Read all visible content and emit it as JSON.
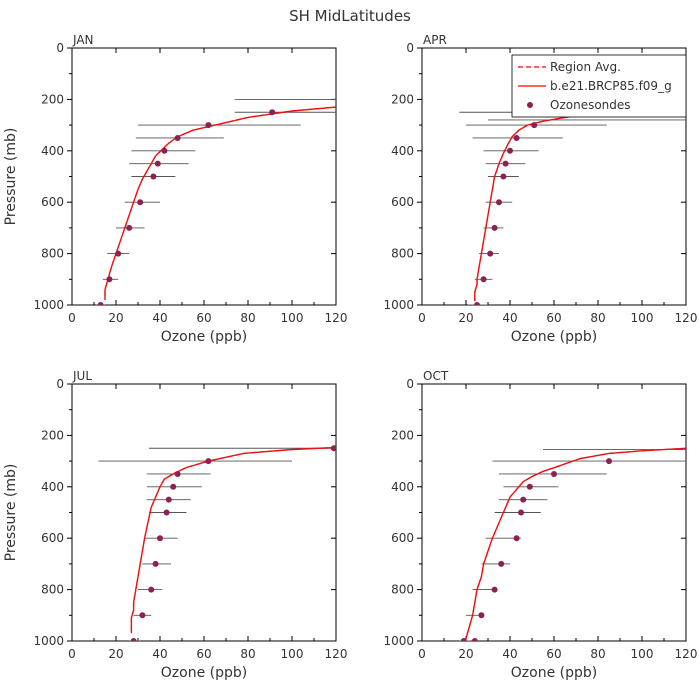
{
  "figure": {
    "title": "SH MidLatitudes",
    "legend": {
      "placement": "top-right",
      "entries": [
        {
          "label": "Region Avg.",
          "style": "dashed",
          "color": "#ff0000"
        },
        {
          "label": "b.e21.BRCP85.f09_g",
          "style": "solid",
          "color": "#ff0000"
        },
        {
          "label": "Ozonesondes",
          "style": "dot",
          "color": "#8b2252"
        }
      ]
    }
  },
  "chart_data": [
    {
      "type": "line",
      "panel": "JAN",
      "title": "JAN",
      "xlabel": "Ozone (ppb)",
      "ylabel": "Pressure (mb)",
      "xlim": [
        0,
        120
      ],
      "ylim": [
        0,
        1000
      ],
      "y_inverted": true,
      "xticks": [
        0,
        20,
        40,
        60,
        80,
        100,
        120
      ],
      "yticks": [
        0,
        200,
        400,
        600,
        800,
        1000
      ],
      "model": {
        "x": [
          120,
          100,
          80,
          65,
          55,
          48,
          44,
          41,
          38,
          36,
          34,
          32,
          30,
          28,
          26,
          24,
          22,
          20,
          18,
          17,
          16,
          15,
          15
        ],
        "y": [
          230,
          245,
          270,
          300,
          320,
          345,
          370,
          395,
          420,
          450,
          480,
          510,
          550,
          600,
          650,
          700,
          750,
          800,
          850,
          880,
          910,
          940,
          980
        ]
      },
      "region_avg": {
        "x": [
          120,
          100,
          80,
          65,
          55,
          48,
          44,
          41,
          38,
          36,
          34,
          32,
          30,
          28,
          26,
          24,
          22,
          20,
          18,
          17,
          16,
          15,
          15
        ],
        "y": [
          230,
          245,
          270,
          300,
          320,
          345,
          370,
          395,
          420,
          450,
          480,
          510,
          550,
          600,
          650,
          700,
          750,
          800,
          850,
          880,
          910,
          940,
          980
        ]
      },
      "sondes": {
        "x": [
          91,
          62,
          48,
          42,
          39,
          37,
          31,
          26,
          21,
          17,
          13
        ],
        "y": [
          250,
          300,
          350,
          400,
          450,
          500,
          600,
          700,
          800,
          900,
          1000
        ],
        "err": [
          [
            74,
            120
          ],
          [
            30,
            104
          ],
          [
            29,
            69
          ],
          [
            27,
            56
          ],
          [
            26,
            53
          ],
          [
            27,
            47
          ],
          [
            24,
            40
          ],
          [
            20,
            33
          ],
          [
            16,
            26
          ],
          [
            14,
            21
          ],
          [
            11,
            15
          ]
        ],
        "extra_bars": [
          {
            "y": 200,
            "err": [
              74,
              120
            ]
          }
        ]
      }
    },
    {
      "type": "line",
      "panel": "APR",
      "title": "APR",
      "xlabel": "Ozone (ppb)",
      "ylabel": "",
      "xlim": [
        0,
        120
      ],
      "ylim": [
        0,
        1000
      ],
      "y_inverted": true,
      "xticks": [
        0,
        20,
        40,
        60,
        80,
        100,
        120
      ],
      "yticks": [
        0,
        200,
        400,
        600,
        800,
        1000
      ],
      "model": {
        "x": [
          120,
          100,
          80,
          65,
          55,
          48,
          44,
          41,
          39,
          37,
          35,
          33,
          32,
          31,
          30,
          29,
          28,
          27,
          26,
          25,
          25,
          24,
          24
        ],
        "y": [
          215,
          230,
          250,
          270,
          285,
          300,
          320,
          345,
          375,
          410,
          450,
          500,
          550,
          600,
          650,
          700,
          750,
          800,
          850,
          900,
          920,
          950,
          985
        ]
      },
      "region_avg": {
        "x": [
          120,
          100,
          80,
          65,
          55,
          48,
          44,
          41,
          39,
          37,
          35,
          33,
          32,
          31,
          30,
          29,
          28,
          27,
          26,
          25,
          25,
          24,
          24
        ],
        "y": [
          215,
          230,
          250,
          270,
          285,
          300,
          320,
          345,
          375,
          410,
          450,
          500,
          550,
          600,
          650,
          700,
          750,
          800,
          850,
          900,
          920,
          950,
          985
        ]
      },
      "sondes": {
        "x": [
          73,
          51,
          43,
          40,
          38,
          37,
          35,
          33,
          31,
          28,
          25
        ],
        "y": [
          250,
          300,
          350,
          400,
          450,
          500,
          600,
          700,
          800,
          900,
          1000
        ],
        "err": [
          [
            17,
            120
          ],
          [
            20,
            84
          ],
          [
            23,
            64
          ],
          [
            28,
            53
          ],
          [
            29,
            47
          ],
          [
            30,
            44
          ],
          [
            29,
            41
          ],
          [
            28,
            37
          ],
          [
            26,
            35
          ],
          [
            24,
            32
          ],
          [
            21,
            30
          ]
        ],
        "extra_bars": [
          {
            "y": 280,
            "err": [
              30,
              120
            ]
          }
        ]
      }
    },
    {
      "type": "line",
      "panel": "JUL",
      "title": "JUL",
      "xlabel": "Ozone (ppb)",
      "ylabel": "Pressure (mb)",
      "xlim": [
        0,
        120
      ],
      "ylim": [
        0,
        1000
      ],
      "y_inverted": true,
      "xticks": [
        0,
        20,
        40,
        60,
        80,
        100,
        120
      ],
      "yticks": [
        0,
        200,
        400,
        600,
        800,
        1000
      ],
      "model": {
        "x": [
          120,
          100,
          78,
          62,
          52,
          46,
          42,
          40,
          38,
          36,
          35,
          34,
          33,
          32,
          31,
          30,
          29,
          28,
          28,
          27,
          27,
          27
        ],
        "y": [
          247,
          255,
          270,
          300,
          325,
          350,
          370,
          400,
          440,
          480,
          520,
          560,
          600,
          650,
          700,
          750,
          800,
          850,
          880,
          910,
          940,
          970
        ]
      },
      "region_avg": {
        "x": [
          120,
          100,
          78,
          62,
          52,
          46,
          42,
          40,
          38,
          36,
          35,
          34,
          33,
          32,
          31,
          30,
          29,
          28,
          28,
          27,
          27,
          27
        ],
        "y": [
          247,
          255,
          270,
          300,
          325,
          350,
          370,
          400,
          440,
          480,
          520,
          560,
          600,
          650,
          700,
          750,
          800,
          850,
          880,
          910,
          940,
          970
        ]
      },
      "sondes": {
        "x": [
          119,
          62,
          48,
          46,
          44,
          43,
          40,
          38,
          36,
          32,
          28
        ],
        "y": [
          250,
          300,
          350,
          400,
          450,
          500,
          600,
          700,
          800,
          900,
          1000
        ],
        "err": [
          [
            35,
            120
          ],
          [
            12,
            100
          ],
          [
            34,
            63
          ],
          [
            34,
            59
          ],
          [
            34,
            54
          ],
          [
            35,
            52
          ],
          [
            33,
            48
          ],
          [
            32,
            45
          ],
          [
            30,
            41
          ],
          [
            28,
            36
          ],
          [
            26,
            31
          ]
        ],
        "extra_bars": []
      }
    },
    {
      "type": "line",
      "panel": "OCT",
      "title": "OCT",
      "xlabel": "Ozone (ppb)",
      "ylabel": "",
      "xlim": [
        0,
        120
      ],
      "ylim": [
        0,
        1000
      ],
      "y_inverted": true,
      "xticks": [
        0,
        20,
        40,
        60,
        80,
        100,
        120
      ],
      "yticks": [
        0,
        200,
        400,
        600,
        800,
        1000
      ],
      "model": {
        "x": [
          120,
          100,
          85,
          72,
          62,
          55,
          50,
          46,
          43,
          40,
          38,
          36,
          34,
          32,
          30,
          28,
          27,
          25,
          24,
          23,
          22,
          21,
          20
        ],
        "y": [
          250,
          260,
          270,
          290,
          320,
          340,
          360,
          380,
          410,
          440,
          480,
          520,
          560,
          600,
          650,
          700,
          750,
          800,
          850,
          900,
          930,
          960,
          990
        ]
      },
      "region_avg": {
        "x": [
          120,
          100,
          85,
          72,
          62,
          55,
          50,
          46,
          43,
          40,
          38,
          36,
          34,
          32,
          30,
          28,
          27,
          25,
          24,
          23,
          22,
          21,
          20
        ],
        "y": [
          250,
          260,
          270,
          290,
          320,
          340,
          360,
          380,
          410,
          440,
          480,
          520,
          560,
          600,
          650,
          700,
          750,
          800,
          850,
          900,
          930,
          960,
          990
        ]
      },
      "sondes": {
        "x": [
          85,
          60,
          49,
          46,
          45,
          43,
          36,
          33,
          27,
          24,
          19
        ],
        "y": [
          300,
          350,
          400,
          450,
          500,
          600,
          700,
          800,
          900,
          1000,
          1000
        ],
        "err": [
          [
            32,
            120
          ],
          [
            35,
            84
          ],
          [
            37,
            62
          ],
          [
            35,
            57
          ],
          [
            33,
            54
          ],
          [
            29,
            45
          ],
          [
            27,
            40
          ],
          [
            23,
            34
          ],
          [
            20,
            28
          ],
          [
            17,
            22
          ],
          [
            17,
            22
          ]
        ],
        "extra_bars": [
          {
            "y": 255,
            "err": [
              55,
              120
            ]
          }
        ]
      }
    }
  ]
}
